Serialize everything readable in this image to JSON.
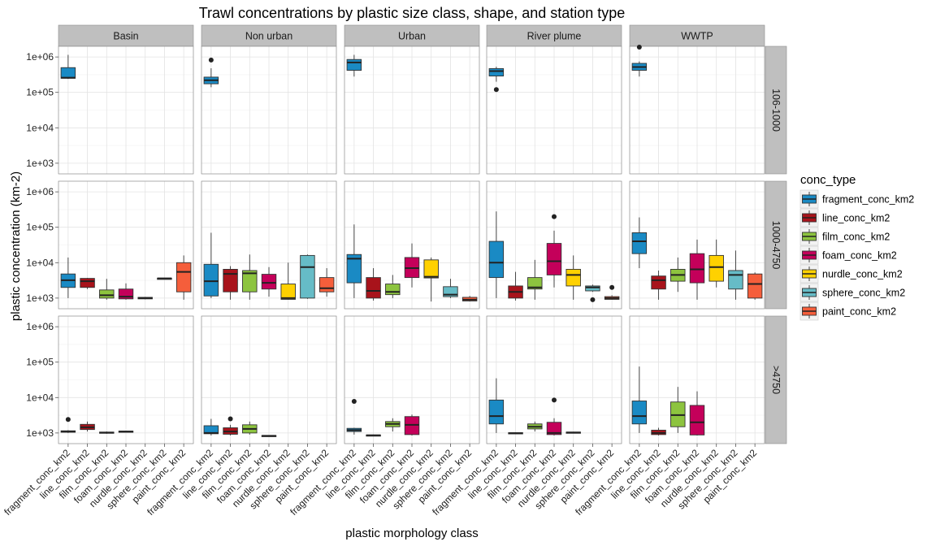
{
  "chart_data": {
    "type": "boxplot",
    "title": "Trawl concentrations by plastic size class, shape, and station type",
    "xlabel": "plastic morphology class",
    "ylabel": "plastic concentration (km-2)",
    "y_scale": "log10",
    "y_ticks": [
      "1e+03",
      "1e+04",
      "1e+05",
      "1e+06"
    ],
    "y_tick_values": [
      1000,
      10000,
      100000,
      1000000
    ],
    "ylim": [
      500,
      2000000
    ],
    "categories": [
      "fragment_conc_km2",
      "line_conc_km2",
      "film_conc_km2",
      "foam_conc_km2",
      "nurdle_conc_km2",
      "sphere_conc_km2",
      "paint_conc_km2"
    ],
    "columns": [
      "Basin",
      "Non urban",
      "Urban",
      "River plume",
      "WWTP"
    ],
    "rows": [
      "106-1000",
      "1000-4750",
      ">4750"
    ],
    "legend": {
      "title": "conc_type",
      "position": "right",
      "entries": [
        "fragment_conc_km2",
        "line_conc_km2",
        "film_conc_km2",
        "foam_conc_km2",
        "nurdle_conc_km2",
        "sphere_conc_km2",
        "paint_conc_km2"
      ]
    },
    "colors": {
      "fragment_conc_km2": "#1a8ac4",
      "line_conc_km2": "#a8131b",
      "film_conc_km2": "#8dc43f",
      "foam_conc_km2": "#c4005a",
      "nurdle_conc_km2": "#ffd100",
      "sphere_conc_km2": "#66bcc7",
      "paint_conc_km2": "#f55e3b"
    },
    "grid": true,
    "boxes": [
      {
        "row": 0,
        "col": 0,
        "cat": 0,
        "lw": 240000,
        "q1": 250000,
        "med": 260000,
        "q3": 500000,
        "uw": 1150000,
        "out": []
      },
      {
        "row": 0,
        "col": 1,
        "cat": 0,
        "lw": 140000,
        "q1": 175000,
        "med": 220000,
        "q3": 270000,
        "uw": 480000,
        "out": [
          820000
        ]
      },
      {
        "row": 0,
        "col": 2,
        "cat": 0,
        "lw": 280000,
        "q1": 420000,
        "med": 700000,
        "q3": 850000,
        "uw": 1150000,
        "out": []
      },
      {
        "row": 0,
        "col": 3,
        "cat": 0,
        "lw": 200000,
        "q1": 290000,
        "med": 400000,
        "q3": 470000,
        "uw": 530000,
        "out": [
          120000
        ]
      },
      {
        "row": 0,
        "col": 4,
        "cat": 0,
        "lw": 280000,
        "q1": 420000,
        "med": 520000,
        "q3": 660000,
        "uw": 750000,
        "out": [
          1900000
        ]
      },
      {
        "row": 1,
        "col": 0,
        "cat": 0,
        "lw": 1000,
        "q1": 2000,
        "med": 3200,
        "q3": 4800,
        "uw": 14000,
        "out": []
      },
      {
        "row": 1,
        "col": 0,
        "cat": 1,
        "lw": 1800,
        "q1": 2000,
        "med": 3000,
        "q3": 3600,
        "uw": 3700,
        "out": []
      },
      {
        "row": 1,
        "col": 0,
        "cat": 2,
        "lw": 900,
        "q1": 1000,
        "med": 1200,
        "q3": 1700,
        "uw": 3500,
        "out": []
      },
      {
        "row": 1,
        "col": 0,
        "cat": 3,
        "lw": 900,
        "q1": 950,
        "med": 1100,
        "q3": 1800,
        "uw": 2600,
        "out": []
      },
      {
        "row": 1,
        "col": 0,
        "cat": 4,
        "lw": 920,
        "q1": 950,
        "med": 1000,
        "q3": 1050,
        "uw": 1080,
        "out": []
      },
      {
        "row": 1,
        "col": 0,
        "cat": 5,
        "lw": 3500,
        "q1": 3550,
        "med": 3600,
        "q3": 3650,
        "uw": 3700,
        "out": []
      },
      {
        "row": 1,
        "col": 0,
        "cat": 6,
        "lw": 900,
        "q1": 1500,
        "med": 5500,
        "q3": 10000,
        "uw": 16000,
        "out": []
      },
      {
        "row": 1,
        "col": 1,
        "cat": 0,
        "lw": 1000,
        "q1": 1150,
        "med": 3000,
        "q3": 9000,
        "uw": 70000,
        "out": []
      },
      {
        "row": 1,
        "col": 1,
        "cat": 1,
        "lw": 900,
        "q1": 1500,
        "med": 4800,
        "q3": 6500,
        "uw": 8000,
        "out": []
      },
      {
        "row": 1,
        "col": 1,
        "cat": 2,
        "lw": 900,
        "q1": 1500,
        "med": 5000,
        "q3": 6000,
        "uw": 17000,
        "out": []
      },
      {
        "row": 1,
        "col": 1,
        "cat": 3,
        "lw": 1100,
        "q1": 1800,
        "med": 2700,
        "q3": 4700,
        "uw": 7500,
        "out": []
      },
      {
        "row": 1,
        "col": 1,
        "cat": 4,
        "lw": 900,
        "q1": 920,
        "med": 1000,
        "q3": 2500,
        "uw": 10000,
        "out": []
      },
      {
        "row": 1,
        "col": 1,
        "cat": 5,
        "lw": 950,
        "q1": 1000,
        "med": 7500,
        "q3": 16000,
        "uw": 17000,
        "out": []
      },
      {
        "row": 1,
        "col": 1,
        "cat": 6,
        "lw": 1100,
        "q1": 1500,
        "med": 1900,
        "q3": 3800,
        "uw": 7000,
        "out": []
      },
      {
        "row": 1,
        "col": 2,
        "cat": 0,
        "lw": 1000,
        "q1": 2700,
        "med": 13000,
        "q3": 17000,
        "uw": 120000,
        "out": []
      },
      {
        "row": 1,
        "col": 2,
        "cat": 1,
        "lw": 850,
        "q1": 1000,
        "med": 1600,
        "q3": 3800,
        "uw": 7000,
        "out": []
      },
      {
        "row": 1,
        "col": 2,
        "cat": 2,
        "lw": 1000,
        "q1": 1250,
        "med": 1500,
        "q3": 2500,
        "uw": 4500,
        "out": []
      },
      {
        "row": 1,
        "col": 2,
        "cat": 3,
        "lw": 2000,
        "q1": 3800,
        "med": 7000,
        "q3": 14000,
        "uw": 35000,
        "out": []
      },
      {
        "row": 1,
        "col": 2,
        "cat": 4,
        "lw": 800,
        "q1": 3700,
        "med": 4000,
        "q3": 12000,
        "uw": 14000,
        "out": []
      },
      {
        "row": 1,
        "col": 2,
        "cat": 5,
        "lw": 1000,
        "q1": 1100,
        "med": 1250,
        "q3": 2100,
        "uw": 3500,
        "out": []
      },
      {
        "row": 1,
        "col": 2,
        "cat": 6,
        "lw": 800,
        "q1": 830,
        "med": 900,
        "q3": 1050,
        "uw": 1150,
        "out": []
      },
      {
        "row": 1,
        "col": 3,
        "cat": 0,
        "lw": 1000,
        "q1": 3800,
        "med": 10000,
        "q3": 40000,
        "uw": 280000,
        "out": []
      },
      {
        "row": 1,
        "col": 3,
        "cat": 1,
        "lw": 850,
        "q1": 1000,
        "med": 1500,
        "q3": 2200,
        "uw": 5500,
        "out": []
      },
      {
        "row": 1,
        "col": 3,
        "cat": 2,
        "lw": 900,
        "q1": 1800,
        "med": 2000,
        "q3": 3800,
        "uw": 12000,
        "out": []
      },
      {
        "row": 1,
        "col": 3,
        "cat": 3,
        "lw": 2000,
        "q1": 4500,
        "med": 11000,
        "q3": 35000,
        "uw": 80000,
        "out": [
          200000
        ]
      },
      {
        "row": 1,
        "col": 3,
        "cat": 4,
        "lw": 900,
        "q1": 2200,
        "med": 4500,
        "q3": 6500,
        "uw": 16000,
        "out": []
      },
      {
        "row": 1,
        "col": 3,
        "cat": 5,
        "lw": 1500,
        "q1": 1600,
        "med": 2000,
        "q3": 2200,
        "uw": 2400,
        "out": [
          900
        ]
      },
      {
        "row": 1,
        "col": 3,
        "cat": 6,
        "lw": 900,
        "q1": 920,
        "med": 1000,
        "q3": 1100,
        "uw": 1200,
        "out": [
          2000
        ]
      },
      {
        "row": 1,
        "col": 4,
        "cat": 0,
        "lw": 7000,
        "q1": 18000,
        "med": 40000,
        "q3": 70000,
        "uw": 190000,
        "out": []
      },
      {
        "row": 1,
        "col": 4,
        "cat": 1,
        "lw": 900,
        "q1": 1800,
        "med": 3200,
        "q3": 4200,
        "uw": 6000,
        "out": []
      },
      {
        "row": 1,
        "col": 4,
        "cat": 2,
        "lw": 1500,
        "q1": 3000,
        "med": 4500,
        "q3": 6500,
        "uw": 14000,
        "out": []
      },
      {
        "row": 1,
        "col": 4,
        "cat": 3,
        "lw": 900,
        "q1": 2700,
        "med": 6500,
        "q3": 18000,
        "uw": 45000,
        "out": []
      },
      {
        "row": 1,
        "col": 4,
        "cat": 4,
        "lw": 2000,
        "q1": 3000,
        "med": 7500,
        "q3": 16000,
        "uw": 45000,
        "out": []
      },
      {
        "row": 1,
        "col": 4,
        "cat": 5,
        "lw": 900,
        "q1": 1800,
        "med": 4500,
        "q3": 6000,
        "uw": 22000,
        "out": []
      },
      {
        "row": 1,
        "col": 4,
        "cat": 6,
        "lw": 900,
        "q1": 1000,
        "med": 2500,
        "q3": 4800,
        "uw": 5300,
        "out": []
      },
      {
        "row": 2,
        "col": 0,
        "cat": 0,
        "lw": 1000,
        "q1": 1050,
        "med": 1100,
        "q3": 1150,
        "uw": 1200,
        "out": [
          2400
        ]
      },
      {
        "row": 2,
        "col": 0,
        "cat": 1,
        "lw": 1100,
        "q1": 1250,
        "med": 1450,
        "q3": 1750,
        "uw": 2100,
        "out": []
      },
      {
        "row": 2,
        "col": 0,
        "cat": 2,
        "lw": 950,
        "q1": 980,
        "med": 1020,
        "q3": 1060,
        "uw": 1100,
        "out": []
      },
      {
        "row": 2,
        "col": 0,
        "cat": 3,
        "lw": 1020,
        "q1": 1060,
        "med": 1100,
        "q3": 1130,
        "uw": 1160,
        "out": []
      },
      {
        "row": 2,
        "col": 1,
        "cat": 0,
        "lw": 850,
        "q1": 950,
        "med": 1000,
        "q3": 1600,
        "uw": 2500,
        "out": []
      },
      {
        "row": 2,
        "col": 1,
        "cat": 1,
        "lw": 850,
        "q1": 920,
        "med": 1100,
        "q3": 1400,
        "uw": 1700,
        "out": [
          2500
        ]
      },
      {
        "row": 2,
        "col": 1,
        "cat": 2,
        "lw": 900,
        "q1": 1000,
        "med": 1300,
        "q3": 1700,
        "uw": 2100,
        "out": []
      },
      {
        "row": 2,
        "col": 1,
        "cat": 3,
        "lw": 800,
        "q1": 810,
        "med": 830,
        "q3": 850,
        "uw": 860,
        "out": []
      },
      {
        "row": 2,
        "col": 2,
        "cat": 0,
        "lw": 900,
        "q1": 1100,
        "med": 1200,
        "q3": 1350,
        "uw": 1400,
        "out": [
          7800
        ]
      },
      {
        "row": 2,
        "col": 2,
        "cat": 1,
        "lw": 820,
        "q1": 840,
        "med": 860,
        "q3": 880,
        "uw": 900,
        "out": []
      },
      {
        "row": 2,
        "col": 2,
        "cat": 2,
        "lw": 1100,
        "q1": 1500,
        "med": 1800,
        "q3": 2100,
        "uw": 2600,
        "out": []
      },
      {
        "row": 2,
        "col": 2,
        "cat": 3,
        "lw": 850,
        "q1": 900,
        "med": 1700,
        "q3": 2900,
        "uw": 3300,
        "out": []
      },
      {
        "row": 2,
        "col": 3,
        "cat": 0,
        "lw": 1000,
        "q1": 1800,
        "med": 3000,
        "q3": 8500,
        "uw": 35000,
        "out": []
      },
      {
        "row": 2,
        "col": 3,
        "cat": 1,
        "lw": 920,
        "q1": 950,
        "med": 980,
        "q3": 1020,
        "uw": 1050,
        "out": []
      },
      {
        "row": 2,
        "col": 3,
        "cat": 2,
        "lw": 1100,
        "q1": 1300,
        "med": 1500,
        "q3": 1800,
        "uw": 2100,
        "out": []
      },
      {
        "row": 2,
        "col": 3,
        "cat": 3,
        "lw": 850,
        "q1": 900,
        "med": 1000,
        "q3": 2000,
        "uw": 2600,
        "out": [
          8500
        ]
      },
      {
        "row": 2,
        "col": 3,
        "cat": 4,
        "lw": 980,
        "q1": 1000,
        "med": 1030,
        "q3": 1060,
        "uw": 1080,
        "out": []
      },
      {
        "row": 2,
        "col": 4,
        "cat": 0,
        "lw": 1000,
        "q1": 1800,
        "med": 3000,
        "q3": 8000,
        "uw": 75000,
        "out": []
      },
      {
        "row": 2,
        "col": 4,
        "cat": 1,
        "lw": 850,
        "q1": 900,
        "med": 1000,
        "q3": 1200,
        "uw": 1400,
        "out": []
      },
      {
        "row": 2,
        "col": 4,
        "cat": 2,
        "lw": 1000,
        "q1": 1500,
        "med": 3200,
        "q3": 7500,
        "uw": 20000,
        "out": []
      },
      {
        "row": 2,
        "col": 4,
        "cat": 3,
        "lw": 850,
        "q1": 880,
        "med": 2000,
        "q3": 6000,
        "uw": 15000,
        "out": []
      }
    ]
  }
}
